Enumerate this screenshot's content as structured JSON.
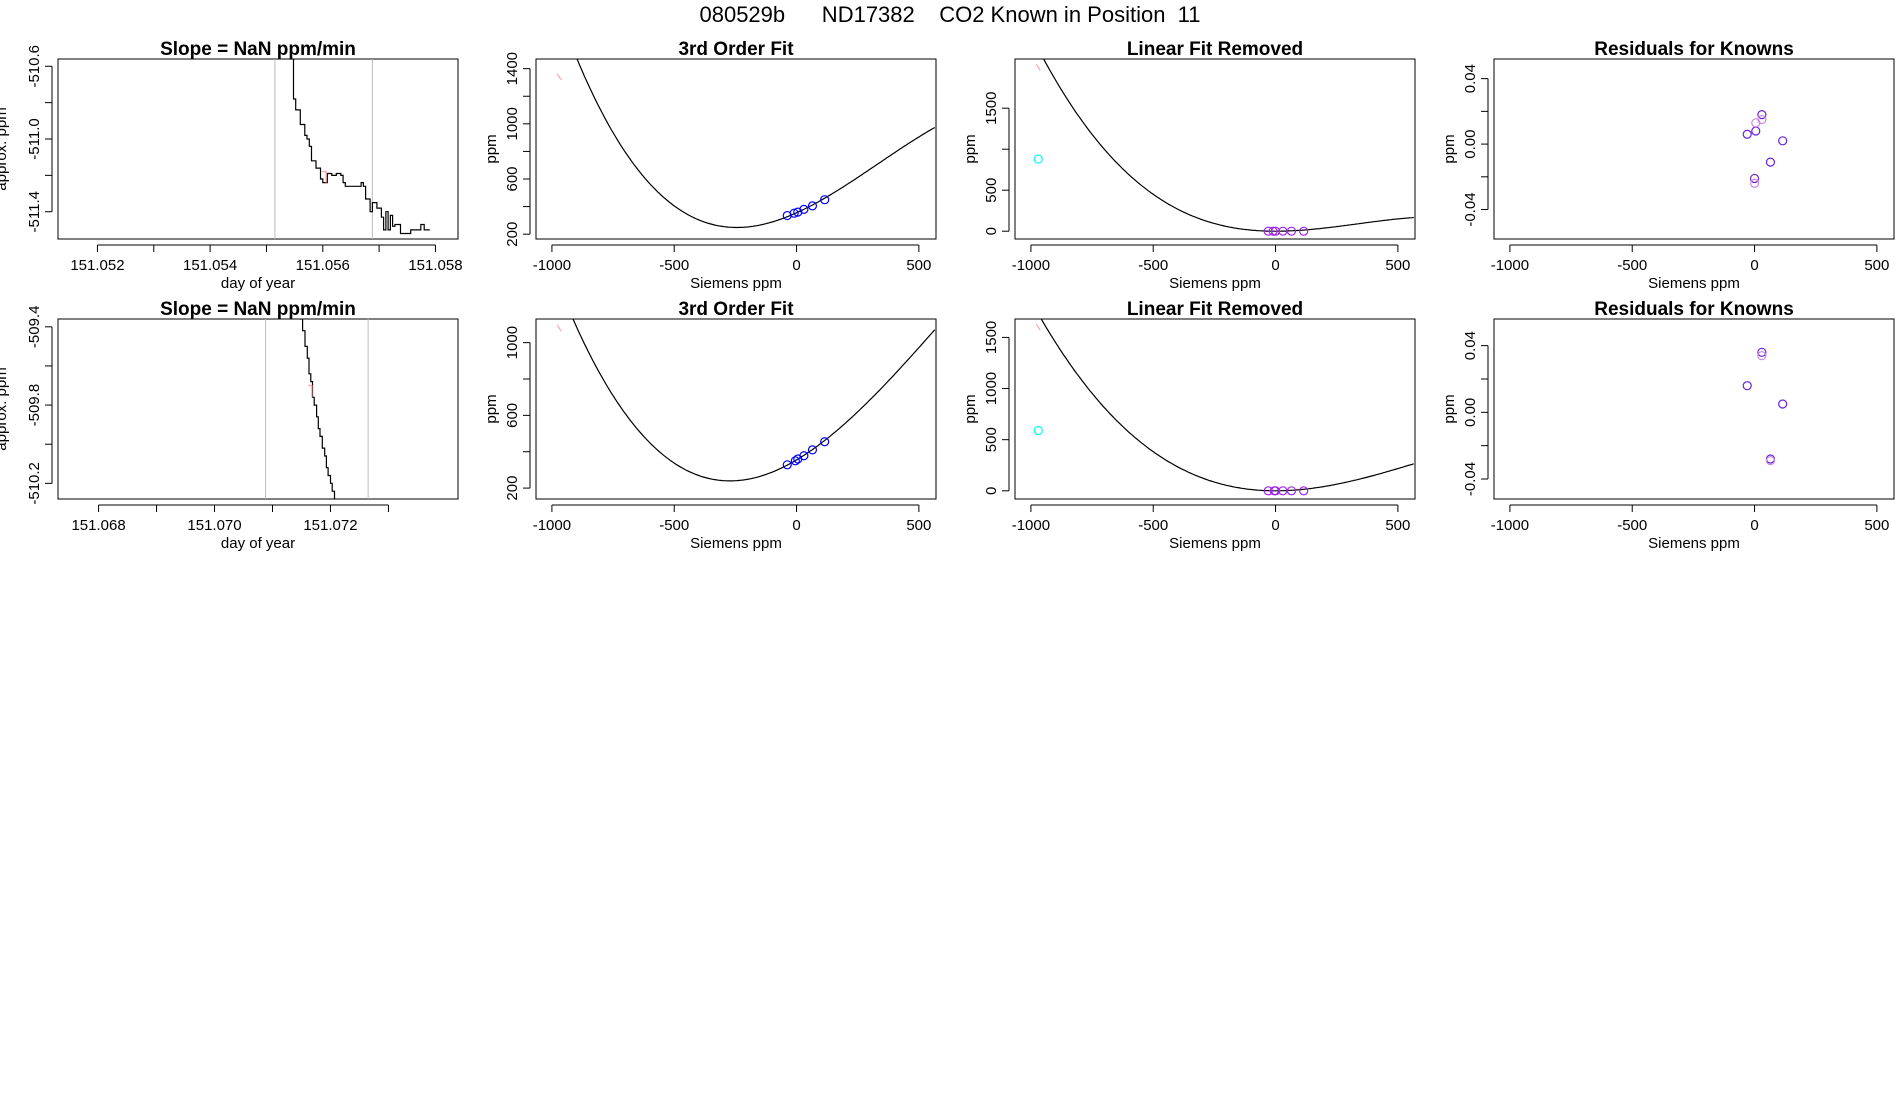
{
  "figure": {
    "title": "080529b      ND17382    CO2 Known in Position  11"
  },
  "chart_data": [
    {
      "type": "line",
      "row": 0,
      "col": 0,
      "title": "Slope =  NaN  ppm/min",
      "xlabel": "day of year",
      "ylabel": "approx. ppm",
      "xlim": [
        151.0513,
        151.0584
      ],
      "ylim": [
        -511.55,
        -510.56
      ],
      "xticks": [
        151.052,
        151.053,
        151.054,
        151.055,
        151.056,
        151.057,
        151.058
      ],
      "xticklabels": [
        "151.052",
        "",
        "151.054",
        "",
        "151.056",
        "",
        "151.058"
      ],
      "yticks": [
        -511.4,
        -511.2,
        -511.0,
        -510.8,
        -510.6
      ],
      "yticklabels": [
        "-511.4",
        "",
        "-511.0",
        "",
        "-510.6"
      ],
      "vlines": [
        151.05515,
        151.05688
      ],
      "series": [
        {
          "color": "#000000",
          "x": [
            151.05541,
            151.05548,
            151.05552,
            151.05556,
            151.0556,
            151.05564,
            151.05568,
            151.05572,
            151.05576,
            151.0558,
            151.05584,
            151.05588,
            151.05592,
            151.05596,
            151.056,
            151.05604,
            151.05608,
            151.05612,
            151.05616,
            151.0562,
            151.05624,
            151.05628,
            151.05632,
            151.05636,
            151.0564,
            151.05646,
            151.05652,
            151.05658,
            151.05664,
            151.05668,
            151.05672,
            151.05676,
            151.0568,
            151.05684,
            151.05688,
            151.05692,
            151.05696,
            151.057,
            151.05704,
            151.05708,
            151.05712,
            151.05716,
            151.0572,
            151.05724,
            151.05728,
            151.05732,
            151.05738,
            151.05744,
            151.0575,
            151.05756,
            151.05762,
            151.05768,
            151.05774,
            151.0578,
            151.05786,
            151.0579
          ],
          "y": [
            -510.56,
            -510.78,
            -510.84,
            -510.84,
            -510.92,
            -510.92,
            -510.98,
            -511.0,
            -511.04,
            -511.12,
            -511.12,
            -511.16,
            -511.16,
            -511.22,
            -511.24,
            -511.24,
            -511.19,
            -511.19,
            -511.2,
            -511.2,
            -511.19,
            -511.19,
            -511.2,
            -511.24,
            -511.26,
            -511.26,
            -511.26,
            -511.26,
            -511.26,
            -511.24,
            -511.26,
            -511.33,
            -511.33,
            -511.4,
            -511.35,
            -511.35,
            -511.38,
            -511.38,
            -511.43,
            -511.5,
            -511.4,
            -511.5,
            -511.42,
            -511.48,
            -511.47,
            -511.47,
            -511.52,
            -511.52,
            -511.52,
            -511.5,
            -511.5,
            -511.5,
            -511.47,
            -511.5,
            -511.5,
            -511.5
          ]
        },
        {
          "color": "#ff9999",
          "x": [
            151.05598,
            151.05606
          ],
          "y": [
            -511.18,
            -511.24
          ]
        }
      ]
    },
    {
      "type": "line",
      "row": 0,
      "col": 1,
      "title": "3rd Order Fit",
      "xlabel": "Siemens ppm",
      "ylabel": "ppm",
      "xlim": [
        -1065,
        570
      ],
      "ylim": [
        165,
        1470
      ],
      "xticks": [
        -1000,
        -500,
        0,
        500
      ],
      "xticklabels": [
        "-1000",
        "-500",
        "0",
        "500"
      ],
      "yticks": [
        200,
        400,
        600,
        800,
        1000,
        1200,
        1400
      ],
      "yticklabels": [
        "200",
        "",
        "600",
        "",
        "1000",
        "",
        "1400"
      ],
      "cubic": {
        "a": 355,
        "b": 0.8,
        "c": 0.0012,
        "d": -1.2e-06,
        "x_from": -1000,
        "x_to": 565
      },
      "points": [
        {
          "x": -38,
          "y": 335,
          "color": "#0000ff"
        },
        {
          "x": -10,
          "y": 352,
          "color": "#0000ff"
        },
        {
          "x": 5,
          "y": 360,
          "color": "#0000ff"
        },
        {
          "x": 30,
          "y": 380,
          "color": "#0000ff"
        },
        {
          "x": 65,
          "y": 405,
          "color": "#0000ff"
        },
        {
          "x": 115,
          "y": 450,
          "color": "#0000ff"
        }
      ],
      "marks": [
        {
          "x": -970,
          "y": 1340,
          "color": "#ff9999"
        }
      ]
    },
    {
      "type": "line",
      "row": 0,
      "col": 2,
      "title": "Linear Fit Removed",
      "xlabel": "Siemens ppm",
      "ylabel": "ppm",
      "xlim": [
        -1065,
        570
      ],
      "ylim": [
        -95,
        2100
      ],
      "xticks": [
        -1000,
        -500,
        0,
        500
      ],
      "xticklabels": [
        "-1000",
        "-500",
        "0",
        "500"
      ],
      "yticks": [
        0,
        500,
        1000,
        1500
      ],
      "yticklabels": [
        "0",
        "500",
        "",
        "1500"
      ],
      "cubic": {
        "a": 0,
        "b": 0,
        "c": 0.0012,
        "d": -1.2e-06,
        "x_from": -1000,
        "x_to": 565
      },
      "points": [
        {
          "x": -30,
          "y": 0,
          "color": "#a020f0"
        },
        {
          "x": -10,
          "y": 0,
          "color": "#a020f0"
        },
        {
          "x": 0,
          "y": 0,
          "color": "#a020f0"
        },
        {
          "x": 30,
          "y": 0,
          "color": "#a020f0"
        },
        {
          "x": 65,
          "y": 0,
          "color": "#a020f0"
        },
        {
          "x": 115,
          "y": 0,
          "color": "#a020f0"
        },
        {
          "x": -970,
          "y": 880,
          "color": "#00ffff"
        }
      ],
      "marks": [
        {
          "x": -970,
          "y": 2000,
          "color": "#ff9999"
        }
      ]
    },
    {
      "type": "scatter",
      "row": 0,
      "col": 3,
      "title": "Residuals for Knowns",
      "xlabel": "Siemens ppm",
      "ylabel": "ppm",
      "xlim": [
        -1065,
        570
      ],
      "ylim": [
        -0.058,
        0.052
      ],
      "xticks": [
        -1000,
        -500,
        0,
        500
      ],
      "xticklabels": [
        "-1000",
        "-500",
        "0",
        "500"
      ],
      "yticks": [
        -0.04,
        -0.02,
        0.0,
        0.02,
        0.04
      ],
      "yticklabels": [
        "-0.04",
        "",
        "0.00",
        "",
        "0.04"
      ],
      "points": [
        {
          "x": -30,
          "y": 0.006,
          "color": "#6a22d8"
        },
        {
          "x": 5,
          "y": 0.008,
          "color": "#6a22d8"
        },
        {
          "x": 5,
          "y": 0.013,
          "color": "#cc88dd"
        },
        {
          "x": 30,
          "y": 0.018,
          "color": "#6a22d8"
        },
        {
          "x": 30,
          "y": 0.015,
          "color": "#cc88dd"
        },
        {
          "x": 65,
          "y": -0.011,
          "color": "#6a22d8"
        },
        {
          "x": 115,
          "y": 0.002,
          "color": "#6a22d8"
        },
        {
          "x": 0,
          "y": -0.021,
          "color": "#6a22d8"
        },
        {
          "x": 0,
          "y": -0.024,
          "color": "#cc88dd"
        }
      ]
    },
    {
      "type": "line",
      "row": 1,
      "col": 0,
      "title": "Slope =  NaN  ppm/min",
      "xlabel": "day of year",
      "ylabel": "approx. ppm",
      "xlim": [
        151.0673,
        151.0742
      ],
      "ylim": [
        -510.28,
        -509.36
      ],
      "xticks": [
        151.068,
        151.069,
        151.07,
        151.071,
        151.072,
        151.073
      ],
      "xticklabels": [
        "151.068",
        "",
        "151.070",
        "",
        "151.072",
        ""
      ],
      "yticks": [
        -510.2,
        -510.0,
        -509.8,
        -509.6,
        -509.4
      ],
      "yticklabels": [
        "-510.2",
        "",
        "-509.8",
        "",
        "-509.4"
      ],
      "vlines": [
        151.07088,
        151.07265
      ],
      "series": [
        {
          "color": "#000000",
          "x": [
            151.07147,
            151.07152,
            151.07156,
            151.0716,
            151.07163,
            151.07166,
            151.07169,
            151.07172,
            151.07176,
            151.07179,
            151.07182,
            151.07186,
            151.0719,
            151.07193,
            151.07196,
            151.072,
            151.07203,
            151.07207
          ],
          "y": [
            -509.36,
            -509.42,
            -509.5,
            -509.56,
            -509.64,
            -509.68,
            -509.76,
            -509.8,
            -509.86,
            -509.92,
            -509.96,
            -510.02,
            -510.06,
            -510.12,
            -510.16,
            -510.2,
            -510.24,
            -510.28
          ]
        },
        {
          "color": "#ff9999",
          "x": [
            151.07162,
            151.07168
          ],
          "y": [
            -509.7,
            -509.76
          ]
        }
      ]
    },
    {
      "type": "line",
      "row": 1,
      "col": 1,
      "title": "3rd Order Fit",
      "xlabel": "Siemens ppm",
      "ylabel": "ppm",
      "xlim": [
        -1065,
        570
      ],
      "ylim": [
        140,
        1130
      ],
      "xticks": [
        -1000,
        -500,
        0,
        500
      ],
      "xticklabels": [
        "-1000",
        "-500",
        "0",
        "500"
      ],
      "yticks": [
        200,
        400,
        600,
        800,
        1000
      ],
      "yticklabels": [
        "200",
        "",
        "600",
        "",
        "1000"
      ],
      "cubic": {
        "a": 355,
        "b": 0.8,
        "c": 0.0012,
        "d": -6.6e-07,
        "x_from": -1000,
        "x_to": 565
      },
      "points": [
        {
          "x": -38,
          "y": 328,
          "color": "#0000ff"
        },
        {
          "x": -5,
          "y": 350,
          "color": "#0000ff"
        },
        {
          "x": 5,
          "y": 360,
          "color": "#0000ff"
        },
        {
          "x": 30,
          "y": 378,
          "color": "#0000ff"
        },
        {
          "x": 65,
          "y": 410,
          "color": "#0000ff"
        },
        {
          "x": 115,
          "y": 455,
          "color": "#0000ff"
        }
      ],
      "marks": [
        {
          "x": -970,
          "y": 1080,
          "color": "#ff9999"
        }
      ]
    },
    {
      "type": "line",
      "row": 1,
      "col": 2,
      "title": "Linear Fit Removed",
      "xlabel": "Siemens ppm",
      "ylabel": "ppm",
      "xlim": [
        -1065,
        570
      ],
      "ylim": [
        -80,
        1680
      ],
      "xticks": [
        -1000,
        -500,
        0,
        500
      ],
      "xticklabels": [
        "-1000",
        "-500",
        "0",
        "500"
      ],
      "yticks": [
        0,
        500,
        1000,
        1500
      ],
      "yticklabels": [
        "0",
        "500",
        "1000",
        "1500"
      ],
      "cubic": {
        "a": 0,
        "b": 0,
        "c": 0.0012,
        "d": -6.6e-07,
        "x_from": -1000,
        "x_to": 565
      },
      "points": [
        {
          "x": -30,
          "y": 0,
          "color": "#a020f0"
        },
        {
          "x": -5,
          "y": 0,
          "color": "#a020f0"
        },
        {
          "x": 0,
          "y": 0,
          "color": "#a020f0"
        },
        {
          "x": 30,
          "y": 0,
          "color": "#a020f0"
        },
        {
          "x": 65,
          "y": 0,
          "color": "#a020f0"
        },
        {
          "x": 115,
          "y": 0,
          "color": "#a020f0"
        },
        {
          "x": -970,
          "y": 590,
          "color": "#00ffff"
        }
      ],
      "marks": [
        {
          "x": -970,
          "y": 1600,
          "color": "#ff9999"
        }
      ]
    },
    {
      "type": "scatter",
      "row": 1,
      "col": 3,
      "title": "Residuals for Knowns",
      "xlabel": "Siemens ppm",
      "ylabel": "ppm",
      "xlim": [
        -1065,
        570
      ],
      "ylim": [
        -0.052,
        0.056
      ],
      "xticks": [
        -1000,
        -500,
        0,
        500
      ],
      "xticklabels": [
        "-1000",
        "-500",
        "0",
        "500"
      ],
      "yticks": [
        -0.04,
        -0.02,
        0.0,
        0.02,
        0.04
      ],
      "yticklabels": [
        "-0.04",
        "",
        "0.00",
        "",
        "0.04"
      ],
      "points": [
        {
          "x": -30,
          "y": 0.016,
          "color": "#6a22d8"
        },
        {
          "x": 30,
          "y": 0.036,
          "color": "#6a22d8"
        },
        {
          "x": 30,
          "y": 0.034,
          "color": "#cc88dd"
        },
        {
          "x": 115,
          "y": 0.005,
          "color": "#6a22d8"
        },
        {
          "x": 65,
          "y": -0.028,
          "color": "#6a22d8"
        },
        {
          "x": 65,
          "y": -0.029,
          "color": "#cc88dd"
        }
      ]
    }
  ]
}
